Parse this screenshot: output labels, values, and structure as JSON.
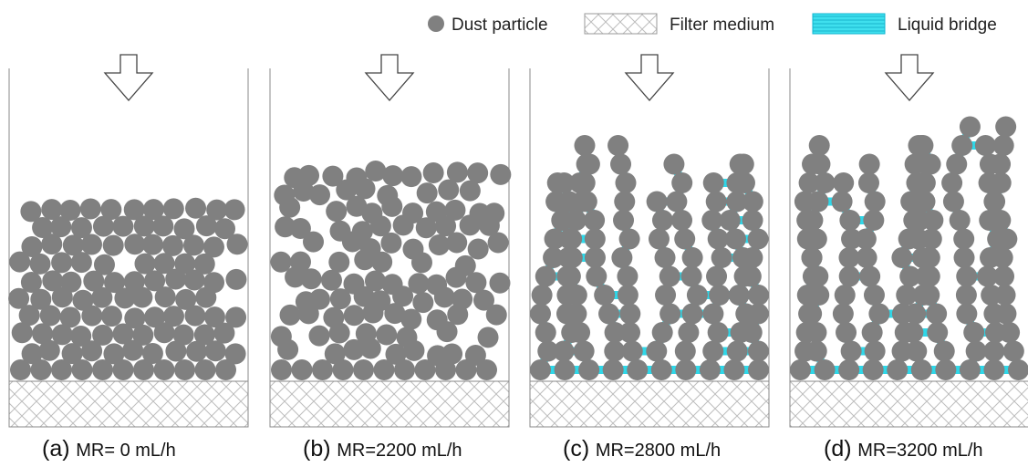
{
  "legend": {
    "dust_label": "Dust particle",
    "filter_label": "Filter medium",
    "bridge_label": "Liquid bridge"
  },
  "colors": {
    "particle": "#808080",
    "liquid_bridge": "#19d3e6",
    "frame": "#888888",
    "hatch": "#c8c8c8"
  },
  "panels": [
    {
      "caption_prefix": "(a)",
      "caption_mr": "MR= 0 mL/h",
      "structure": "dense-packed",
      "liquid_bridges": false
    },
    {
      "caption_prefix": "(b)",
      "caption_mr": "MR=2200 mL/h",
      "structure": "loose-packed",
      "liquid_bridges": false
    },
    {
      "caption_prefix": "(c)",
      "caption_mr": "MR=2800 mL/h",
      "structure": "dendrite",
      "liquid_bridges": true
    },
    {
      "caption_prefix": "(d)",
      "caption_mr": "MR=3200 mL/h",
      "structure": "tall-dendrite",
      "liquid_bridges": true
    }
  ]
}
